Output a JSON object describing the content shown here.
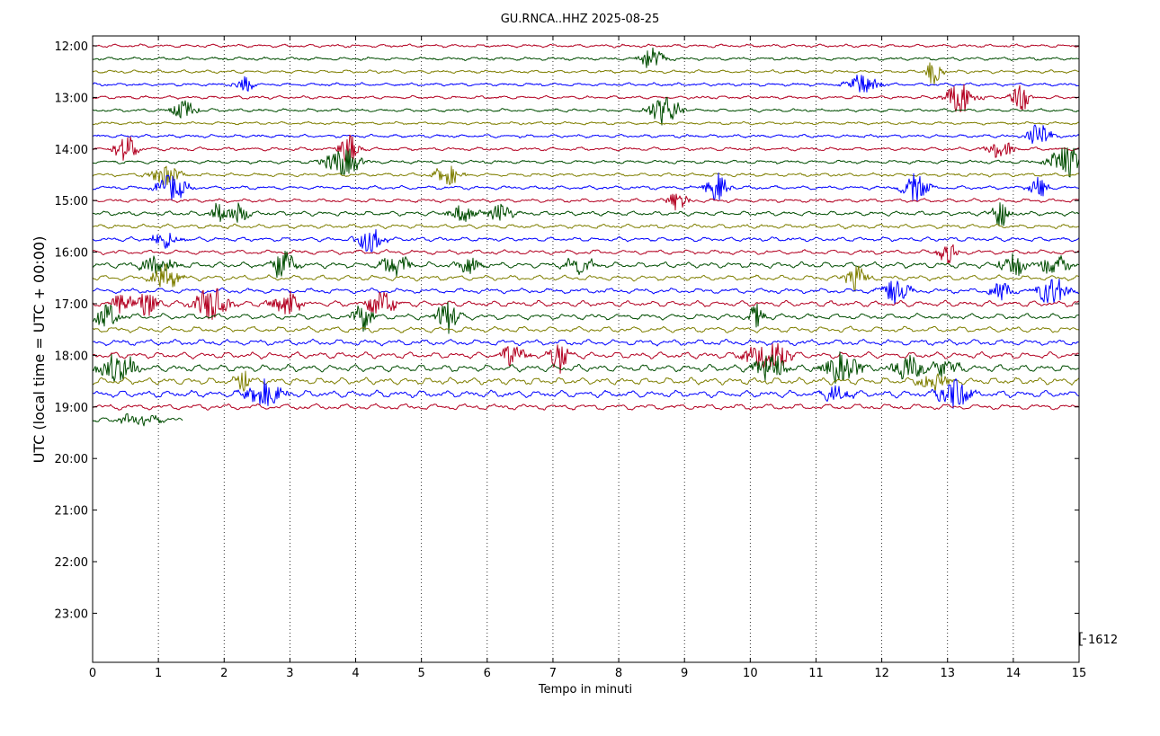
{
  "chart_data": {
    "type": "line",
    "title": "GU.RNCA..HHZ 2025-08-25",
    "xlabel": "Tempo in minuti",
    "ylabel": "UTC (local time = UTC + 00:00)",
    "xlim": [
      0,
      15
    ],
    "x_ticks": [
      "0",
      "1",
      "2",
      "3",
      "4",
      "5",
      "6",
      "7",
      "8",
      "9",
      "10",
      "11",
      "12",
      "13",
      "14",
      "15"
    ],
    "y_ticks": [
      "12:00",
      "13:00",
      "14:00",
      "15:00",
      "16:00",
      "17:00",
      "18:00",
      "19:00",
      "20:00",
      "21:00",
      "22:00",
      "23:00"
    ],
    "grid": "vertical dotted",
    "scale_label": "1612",
    "colors": [
      "#b30021",
      "#004d00",
      "#7f7f00",
      "#0000ff"
    ],
    "traces": [
      {
        "start": "12:00",
        "end_minute": 15,
        "amp": 1.0,
        "events": []
      },
      {
        "start": "12:15",
        "end_minute": 15,
        "amp": 1.0,
        "events": [
          8.5
        ]
      },
      {
        "start": "12:30",
        "end_minute": 15,
        "amp": 1.0,
        "events": [
          12.8
        ]
      },
      {
        "start": "12:45",
        "end_minute": 15,
        "amp": 1.0,
        "events": [
          2.3,
          11.7
        ]
      },
      {
        "start": "13:00",
        "end_minute": 15,
        "amp": 1.0,
        "events": [
          13.2,
          14.1
        ]
      },
      {
        "start": "13:15",
        "end_minute": 15,
        "amp": 1.0,
        "events": [
          1.4,
          8.7
        ]
      },
      {
        "start": "13:30",
        "end_minute": 15,
        "amp": 0.9,
        "events": []
      },
      {
        "start": "13:45",
        "end_minute": 15,
        "amp": 1.0,
        "events": [
          14.4
        ]
      },
      {
        "start": "14:00",
        "end_minute": 15,
        "amp": 1.1,
        "events": [
          0.5,
          3.9,
          13.8
        ]
      },
      {
        "start": "14:15",
        "end_minute": 15,
        "amp": 1.1,
        "events": [
          3.8,
          14.8
        ]
      },
      {
        "start": "14:30",
        "end_minute": 15,
        "amp": 1.1,
        "events": [
          1.1,
          5.4
        ]
      },
      {
        "start": "14:45",
        "end_minute": 15,
        "amp": 1.2,
        "events": [
          1.2,
          9.5,
          12.5,
          14.4
        ]
      },
      {
        "start": "15:00",
        "end_minute": 15,
        "amp": 1.2,
        "events": [
          8.9
        ]
      },
      {
        "start": "15:15",
        "end_minute": 15,
        "amp": 1.5,
        "events": [
          1.9,
          2.2,
          5.6,
          6.2,
          13.8
        ]
      },
      {
        "start": "15:30",
        "end_minute": 15,
        "amp": 1.4,
        "events": []
      },
      {
        "start": "15:45",
        "end_minute": 15,
        "amp": 1.4,
        "events": [
          1.1,
          4.2
        ]
      },
      {
        "start": "16:00",
        "end_minute": 15,
        "amp": 1.5,
        "events": [
          13.0
        ]
      },
      {
        "start": "16:15",
        "end_minute": 15,
        "amp": 2.0,
        "events": [
          1.0,
          2.9,
          4.6,
          5.7,
          7.4,
          14.0,
          14.6
        ]
      },
      {
        "start": "16:30",
        "end_minute": 15,
        "amp": 1.8,
        "events": [
          1.1,
          11.6
        ]
      },
      {
        "start": "16:45",
        "end_minute": 15,
        "amp": 1.7,
        "events": [
          12.2,
          13.8,
          14.6
        ]
      },
      {
        "start": "17:00",
        "end_minute": 15,
        "amp": 2.0,
        "events": [
          0.45,
          0.8,
          1.8,
          2.9,
          3.0,
          4.4
        ]
      },
      {
        "start": "17:15",
        "end_minute": 15,
        "amp": 2.0,
        "events": [
          0.2,
          4.1,
          5.4,
          10.1
        ]
      },
      {
        "start": "17:30",
        "end_minute": 15,
        "amp": 2.0,
        "events": []
      },
      {
        "start": "17:45",
        "end_minute": 15,
        "amp": 2.0,
        "events": []
      },
      {
        "start": "18:00",
        "end_minute": 15,
        "amp": 2.2,
        "events": [
          6.4,
          7.1,
          10.2,
          10.4
        ]
      },
      {
        "start": "18:15",
        "end_minute": 15,
        "amp": 2.4,
        "events": [
          0.3,
          0.5,
          10.3,
          11.4,
          12.4,
          13.0
        ]
      },
      {
        "start": "18:30",
        "end_minute": 15,
        "amp": 2.4,
        "events": [
          2.3,
          12.8
        ]
      },
      {
        "start": "18:45",
        "end_minute": 15,
        "amp": 2.4,
        "events": [
          2.6,
          11.3,
          13.1
        ]
      },
      {
        "start": "19:00",
        "end_minute": 15,
        "amp": 2.0,
        "events": []
      },
      {
        "start": "19:15",
        "end_minute": 1.38,
        "amp": 1.8,
        "events": [
          0.7
        ]
      }
    ]
  }
}
